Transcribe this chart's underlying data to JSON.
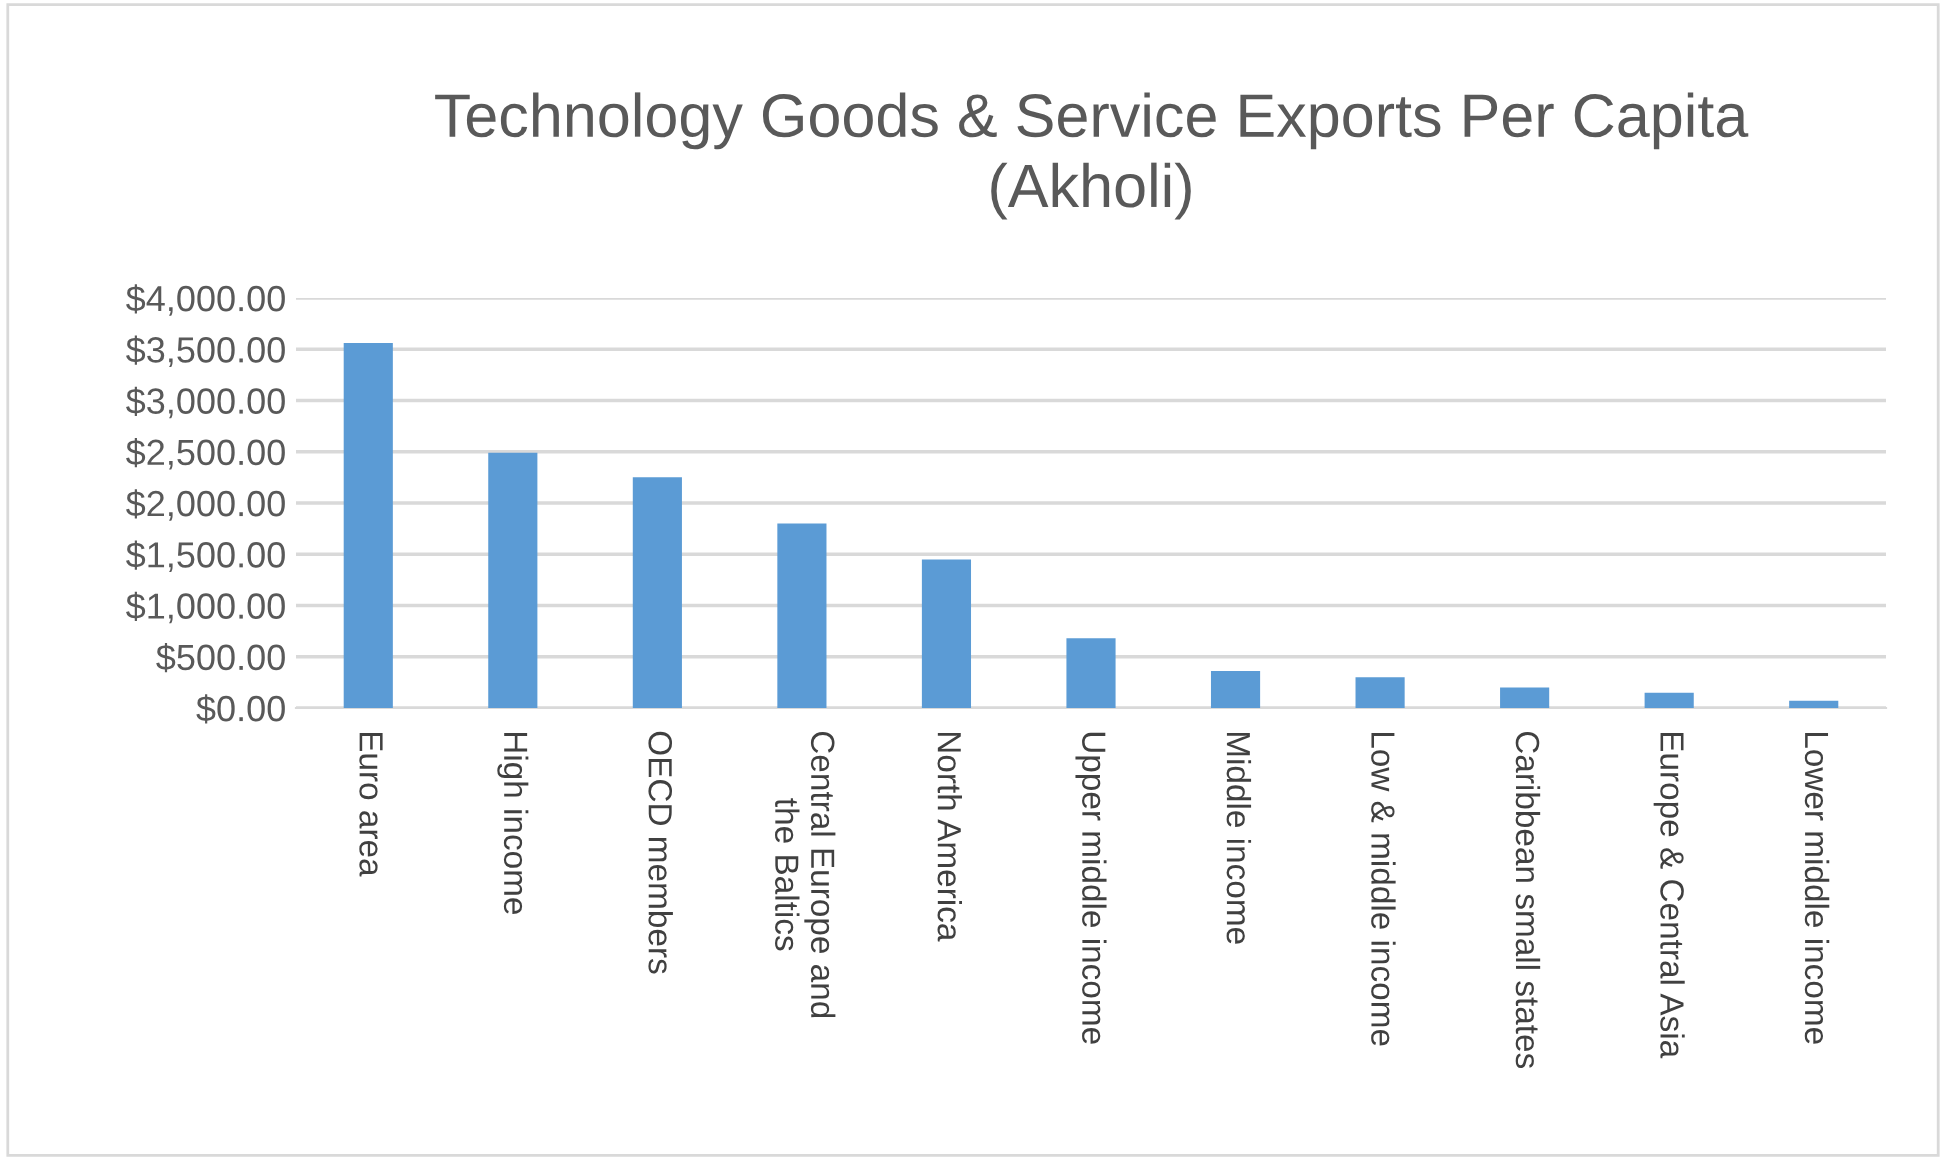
{
  "chart_data": {
    "type": "bar",
    "title": "Technology Goods & Service Exports Per Capita\n(Akholi)",
    "categories": [
      "Euro area",
      "High income",
      "OECD members",
      "Central Europe and\nthe Baltics",
      "North America",
      "Upper middle income",
      "Middle income",
      "Low & middle income",
      "Caribbean small states",
      "Europe & Central Asia",
      "Lower middle income"
    ],
    "values": [
      3560,
      2490,
      2250,
      1800,
      1450,
      680,
      360,
      300,
      200,
      150,
      70
    ],
    "color": "#5b9bd5",
    "ylim": [
      0,
      4000
    ],
    "yticks": [
      {
        "value": 0,
        "label": "$0.00"
      },
      {
        "value": 500,
        "label": "$500.00"
      },
      {
        "value": 1000,
        "label": "$1,000.00"
      },
      {
        "value": 1500,
        "label": "$1,500.00"
      },
      {
        "value": 2000,
        "label": "$2,000.00"
      },
      {
        "value": 2500,
        "label": "$2,500.00"
      },
      {
        "value": 3000,
        "label": "$3,000.00"
      },
      {
        "value": 3500,
        "label": "$3,500.00"
      },
      {
        "value": 4000,
        "label": "$4,000.00"
      }
    ],
    "grid": "y"
  }
}
